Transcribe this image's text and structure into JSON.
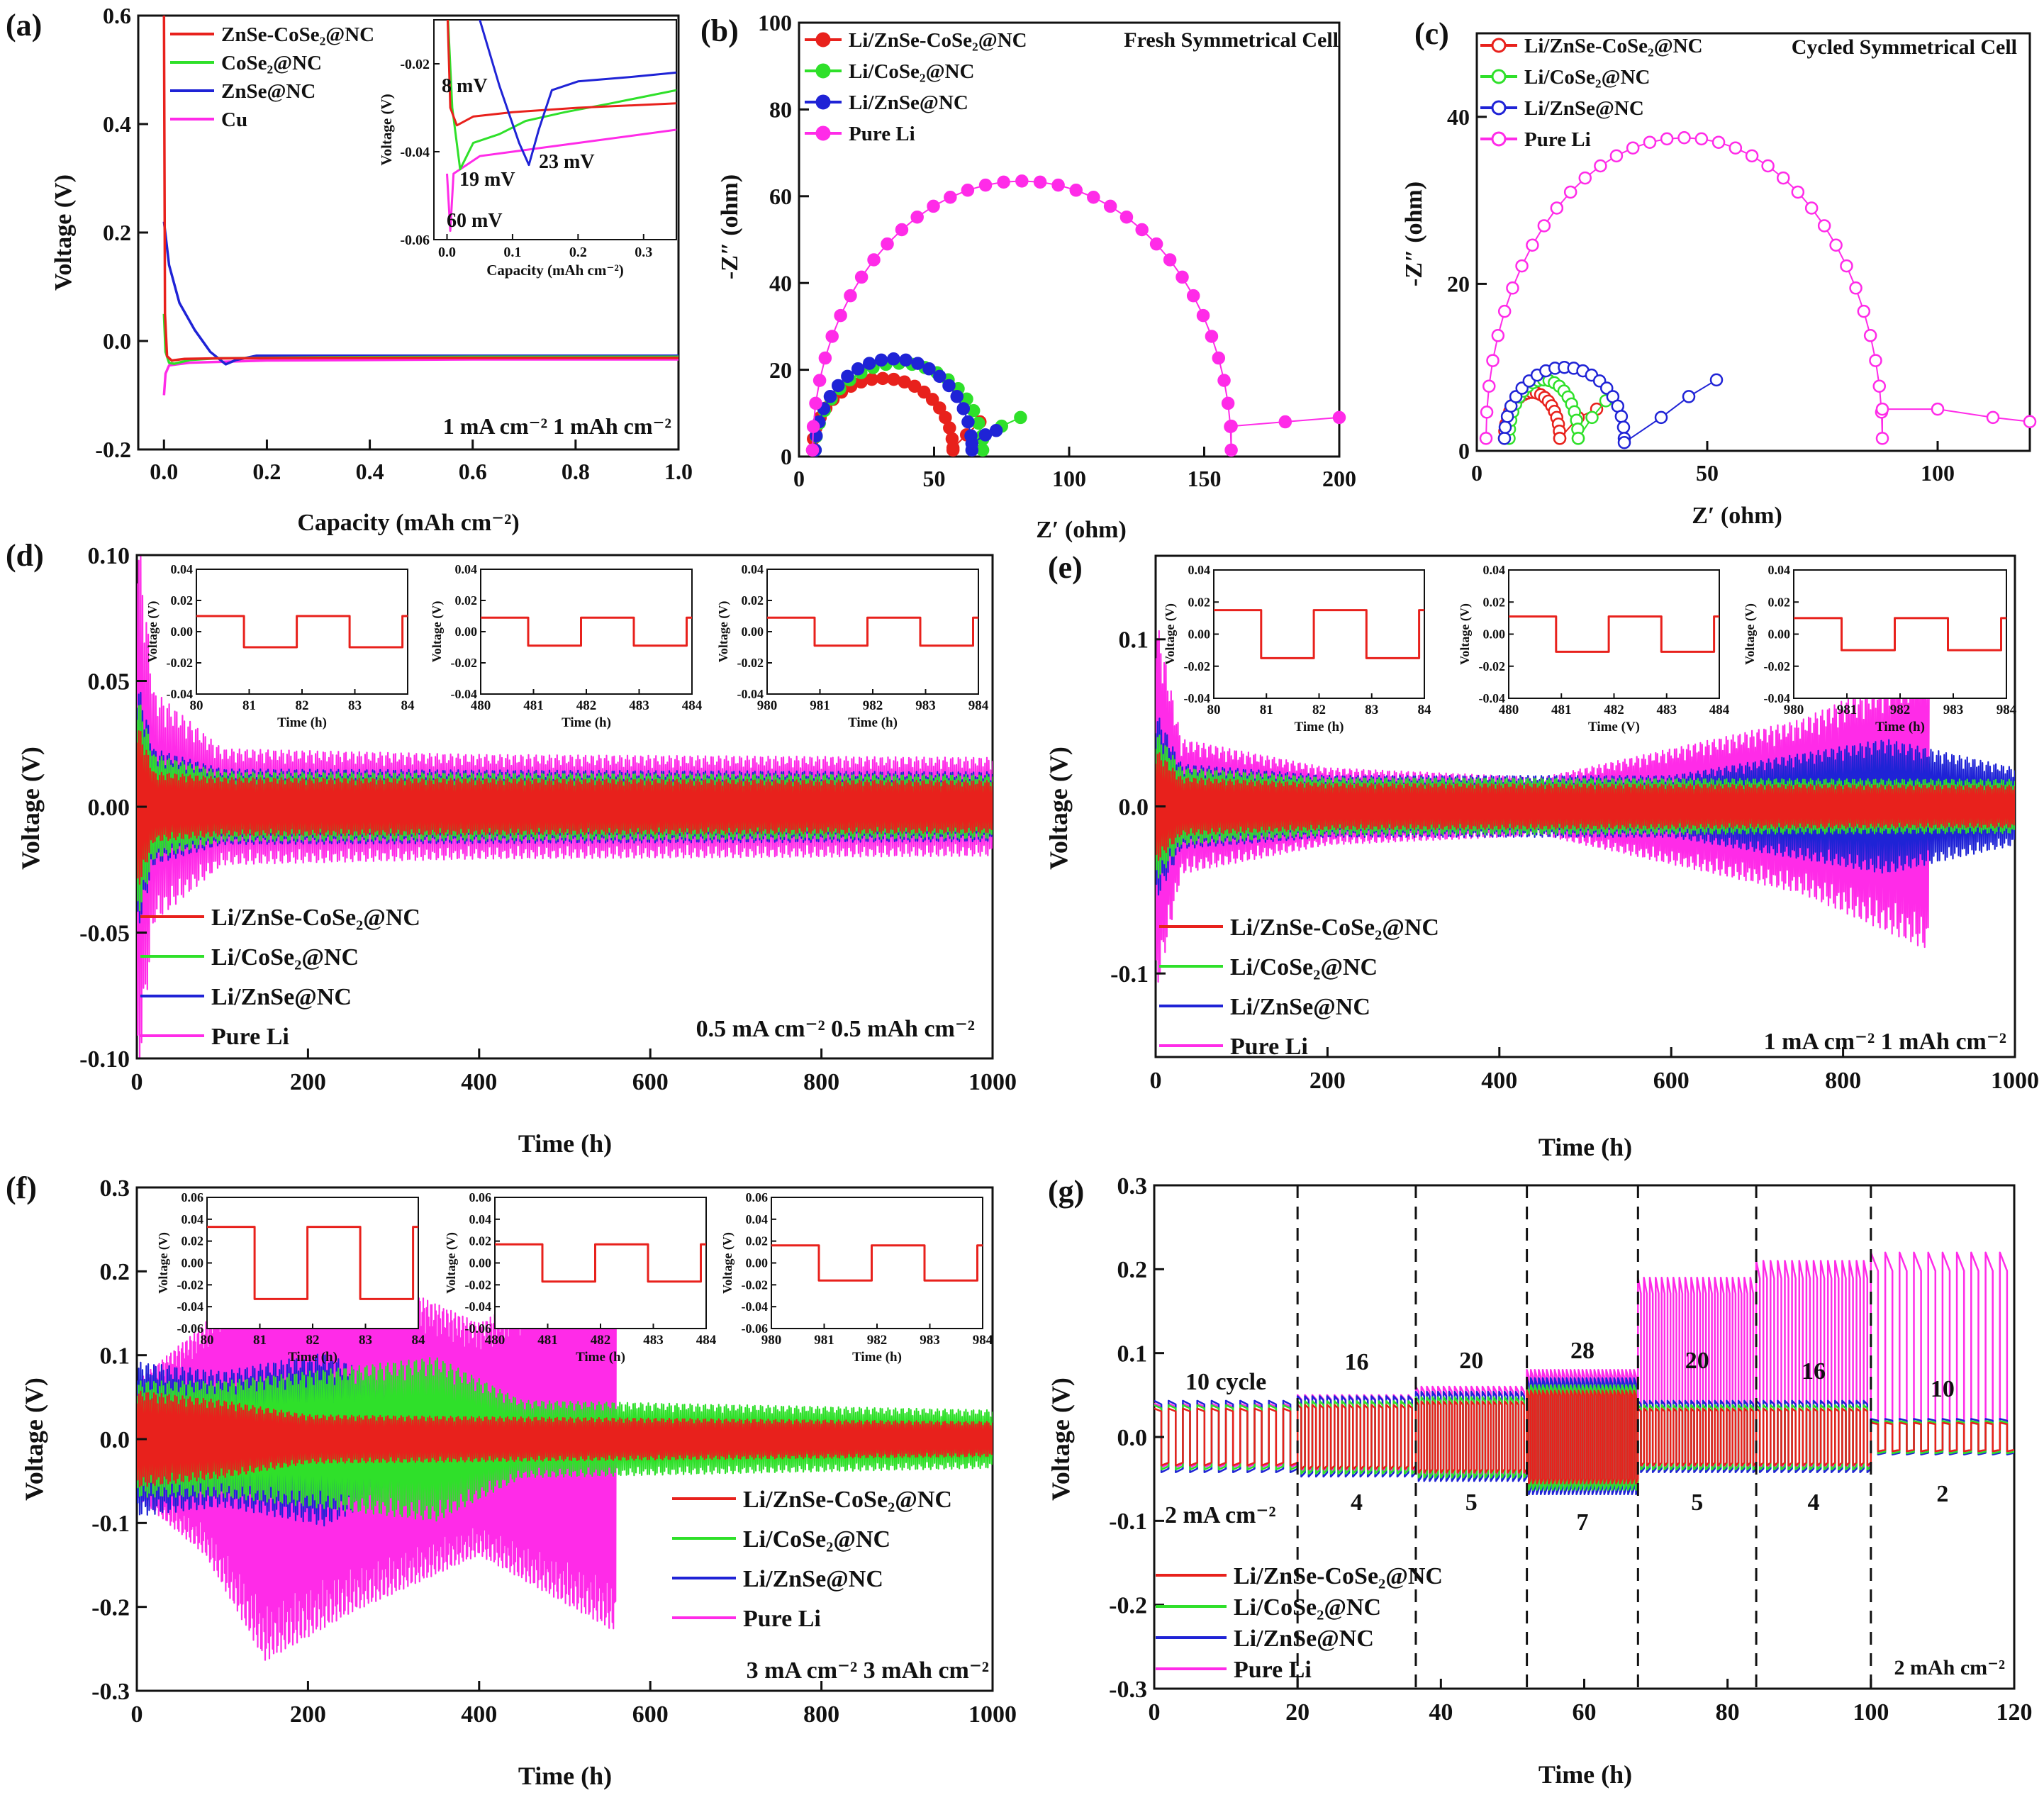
{
  "colors": {
    "red": "#e8211c",
    "green": "#2fe02a",
    "blue": "#1f23d6",
    "magenta": "#ff2be8",
    "black": "#111111"
  },
  "chart_data": [
    {
      "panel": "(a)",
      "type": "line",
      "xlabel": "Capacity (mAh cm⁻²)",
      "ylabel": "Voltage (V)",
      "xlim": [
        -0.05,
        1.0
      ],
      "ylim": [
        -0.2,
        0.6
      ],
      "xticks": [
        "0.0",
        "0.2",
        "0.4",
        "0.6",
        "0.8",
        "1.0"
      ],
      "yticks": [
        "-0.2",
        "0.0",
        "0.2",
        "0.4",
        "0.6"
      ],
      "condition": "1 mA cm⁻² 1 mAh cm⁻²",
      "legend_position": "top-left",
      "series": [
        {
          "name": "ZnSe-CoSe₂@NC",
          "color": "red",
          "x": [
            0,
            0.002,
            0.006,
            0.015,
            0.04,
            0.1,
            0.3,
            0.6,
            1.0
          ],
          "y": [
            0.6,
            0.05,
            -0.028,
            -0.036,
            -0.033,
            -0.032,
            -0.031,
            -0.031,
            -0.031
          ]
        },
        {
          "name": "CoSe₂@NC",
          "color": "green",
          "x": [
            0,
            0.003,
            0.01,
            0.02,
            0.05,
            0.1,
            0.3,
            0.6,
            1.0
          ],
          "y": [
            0.05,
            -0.02,
            -0.04,
            -0.042,
            -0.035,
            -0.032,
            -0.03,
            -0.029,
            -0.029
          ]
        },
        {
          "name": "ZnSe@NC",
          "color": "blue",
          "x": [
            0,
            0.01,
            0.03,
            0.06,
            0.09,
            0.12,
            0.14,
            0.18,
            0.3,
            0.6,
            1.0
          ],
          "y": [
            0.22,
            0.14,
            0.07,
            0.02,
            -0.02,
            -0.043,
            -0.035,
            -0.027,
            -0.027,
            -0.027,
            -0.027
          ]
        },
        {
          "name": "Cu",
          "color": "magenta",
          "x": [
            0,
            0.003,
            0.01,
            0.05,
            0.2,
            0.6,
            1.0
          ],
          "y": [
            -0.1,
            -0.06,
            -0.045,
            -0.04,
            -0.036,
            -0.034,
            -0.034
          ]
        }
      ],
      "inset": {
        "xlabel": "Capacity (mAh cm⁻²)",
        "ylabel": "Voltage (V)",
        "xlim": [
          -0.02,
          0.35
        ],
        "ylim": [
          -0.06,
          -0.01
        ],
        "xticks": [
          "0.0",
          "0.1",
          "0.2",
          "0.3"
        ],
        "yticks": [
          "-0.02",
          "-0.04",
          "-0.06"
        ],
        "annotations": [
          {
            "text": "8 mV",
            "color": "red"
          },
          {
            "text": "19 mV",
            "color": "green"
          },
          {
            "text": "23 mV",
            "color": "blue"
          },
          {
            "text": "60 mV",
            "color": "magenta"
          }
        ]
      }
    },
    {
      "panel": "(b)",
      "type": "scatter",
      "xlabel": "Z′ (ohm)",
      "ylabel": "-Z″ (ohm)",
      "title": "Fresh Symmetrical Cell",
      "xlim": [
        0,
        200
      ],
      "ylim": [
        0,
        100
      ],
      "xticks": [
        "0",
        "50",
        "100",
        "150",
        "200"
      ],
      "yticks": [
        "0",
        "20",
        "40",
        "60",
        "80",
        "100"
      ],
      "legend_position": "top-left",
      "series": [
        {
          "name": "Li/ZnSe-CoSe₂@NC",
          "color": "red",
          "arc": [
            5,
            57,
            16.5
          ],
          "tail": [
            [
              57,
              2
            ],
            [
              62,
              5
            ],
            [
              67,
              8
            ]
          ]
        },
        {
          "name": "Li/CoSe₂@NC",
          "color": "green",
          "arc": [
            6,
            68,
            20
          ],
          "tail": [
            [
              68,
              4
            ],
            [
              75,
              7
            ],
            [
              82,
              9
            ]
          ]
        },
        {
          "name": "Li/ZnSe@NC",
          "color": "blue",
          "arc": [
            6,
            64,
            21
          ],
          "tail": [
            [
              64,
              3
            ],
            [
              69,
              5
            ],
            [
              73,
              6
            ]
          ]
        },
        {
          "name": "Pure Li",
          "color": "magenta",
          "arc": [
            5,
            160,
            62
          ],
          "tail": [
            [
              160,
              7
            ],
            [
              180,
              8
            ],
            [
              200,
              9
            ]
          ]
        }
      ]
    },
    {
      "panel": "(c)",
      "type": "scatter",
      "xlabel": "Z′ (ohm)",
      "ylabel": "-Z″ (ohm)",
      "title": "Cycled Symmetrical Cell",
      "xlim": [
        0,
        120
      ],
      "ylim": [
        0,
        50
      ],
      "xticks": [
        "0",
        "50",
        "100"
      ],
      "yticks": [
        "0",
        "20",
        "40"
      ],
      "legend_position": "top-left",
      "series": [
        {
          "name": "Li/ZnSe-CoSe₂@NC",
          "color": "red",
          "arc": [
            6,
            18,
            5.5
          ],
          "tail": [
            [
              18,
              1.5
            ],
            [
              22,
              4
            ],
            [
              26,
              5
            ]
          ]
        },
        {
          "name": "Li/CoSe₂@NC",
          "color": "green",
          "arc": [
            7,
            22,
            7
          ],
          "tail": [
            [
              22,
              1.5
            ],
            [
              25,
              4
            ],
            [
              28,
              6
            ]
          ]
        },
        {
          "name": "Li/ZnSe@NC",
          "color": "blue",
          "arc": [
            6,
            32,
            8.5
          ],
          "tail": [
            [
              32,
              1
            ],
            [
              40,
              4
            ],
            [
              46,
              6.5
            ],
            [
              52,
              8.5
            ]
          ]
        },
        {
          "name": "Pure Li",
          "color": "magenta",
          "arc": [
            2,
            88,
            36
          ],
          "tail": [
            [
              88,
              5
            ],
            [
              100,
              5
            ],
            [
              112,
              4
            ],
            [
              120,
              3.5
            ]
          ]
        }
      ]
    },
    {
      "panel": "(d)",
      "type": "line",
      "xlabel": "Time (h)",
      "ylabel": "Voltage (V)",
      "xlim": [
        0,
        1000
      ],
      "ylim": [
        -0.1,
        0.1
      ],
      "xticks": [
        "0",
        "200",
        "400",
        "600",
        "800",
        "1000"
      ],
      "yticks": [
        "-0.10",
        "-0.05",
        "0.00",
        "0.05",
        "0.10"
      ],
      "condition": "0.5 mA cm⁻² 0.5 mAh cm⁻²",
      "legend_position": "bottom-left",
      "series": [
        {
          "name": "Li/ZnSe-CoSe₂@NC",
          "color": "red",
          "t": [
            0,
            20,
            100,
            1000
          ],
          "amp": [
            0.03,
            0.012,
            0.01,
            0.009
          ]
        },
        {
          "name": "Li/CoSe₂@NC",
          "color": "green",
          "t": [
            0,
            20,
            100,
            1000
          ],
          "amp": [
            0.04,
            0.018,
            0.012,
            0.011
          ]
        },
        {
          "name": "Li/ZnSe@NC",
          "color": "blue",
          "t": [
            0,
            20,
            100,
            1000
          ],
          "amp": [
            0.045,
            0.02,
            0.013,
            0.012
          ]
        },
        {
          "name": "Pure Li",
          "color": "magenta",
          "t": [
            0,
            20,
            100,
            400,
            1000
          ],
          "amp": [
            0.1,
            0.04,
            0.02,
            0.018,
            0.017
          ]
        }
      ],
      "insets": [
        {
          "xticks": [
            "80",
            "81",
            "82",
            "83",
            "84"
          ],
          "xlabel": "Time (h)",
          "ylabel": "Voltage (V)",
          "yticks": [
            "0.04",
            "0.02",
            "0.00",
            "-0.02",
            "-0.04"
          ],
          "amp": 0.01
        },
        {
          "xticks": [
            "480",
            "481",
            "482",
            "483",
            "484"
          ],
          "xlabel": "Time (h)",
          "ylabel": "Voltage (V)",
          "yticks": [
            "0.04",
            "0.02",
            "0.00",
            "-0.02",
            "-0.04"
          ],
          "amp": 0.009
        },
        {
          "xticks": [
            "980",
            "981",
            "982",
            "983",
            "984"
          ],
          "xlabel": "Time (h)",
          "ylabel": "Voltage (V)",
          "yticks": [
            "0.04",
            "0.02",
            "0.00",
            "-0.02",
            "-0.04"
          ],
          "amp": 0.009
        }
      ]
    },
    {
      "panel": "(e)",
      "type": "line",
      "xlabel": "Time (h)",
      "ylabel": "Voltage (V)",
      "xlim": [
        0,
        1000
      ],
      "ylim": [
        -0.15,
        0.15
      ],
      "xticks": [
        "0",
        "200",
        "400",
        "600",
        "800",
        "1000"
      ],
      "yticks": [
        "-0.1",
        "0.0",
        "0.1"
      ],
      "condition": "1 mA cm⁻²  1 mAh cm⁻²",
      "legend_position": "bottom-left",
      "series": [
        {
          "name": "Li/ZnSe-CoSe₂@NC",
          "color": "red",
          "t": [
            0,
            30,
            200,
            1000
          ],
          "amp": [
            0.03,
            0.015,
            0.012,
            0.011
          ]
        },
        {
          "name": "Li/CoSe₂@NC",
          "color": "green",
          "t": [
            0,
            30,
            200,
            1000
          ],
          "amp": [
            0.04,
            0.02,
            0.015,
            0.014
          ]
        },
        {
          "name": "Li/ZnSe@NC",
          "color": "blue",
          "t": [
            0,
            30,
            200,
            600,
            850,
            1000
          ],
          "amp": [
            0.05,
            0.022,
            0.016,
            0.016,
            0.035,
            0.02
          ]
        },
        {
          "name": "Pure Li",
          "color": "magenta",
          "t": [
            0,
            30,
            200,
            450,
            600,
            750,
            900
          ],
          "amp": [
            0.1,
            0.035,
            0.02,
            0.015,
            0.03,
            0.045,
            0.075
          ]
        }
      ],
      "insets": [
        {
          "xticks": [
            "80",
            "81",
            "82",
            "83",
            "84"
          ],
          "xlabel": "Time (h)",
          "ylabel": "Voltage (V)",
          "yticks": [
            "0.04",
            "0.02",
            "0.00",
            "-0.02",
            "-0.04"
          ],
          "amp": 0.015
        },
        {
          "xticks": [
            "480",
            "481",
            "482",
            "483",
            "484"
          ],
          "xlabel": "Time (V)",
          "ylabel": "Voltage (V)",
          "yticks": [
            "0.04",
            "0.02",
            "0.00",
            "-0.02",
            "-0.04"
          ],
          "amp": 0.011
        },
        {
          "xticks": [
            "980",
            "981",
            "982",
            "983",
            "984"
          ],
          "xlabel": "Time (h)",
          "ylabel": "Voltage (V)",
          "yticks": [
            "0.04",
            "0.02",
            "0.00",
            "-0.02",
            "-0.04"
          ],
          "amp": 0.01
        }
      ]
    },
    {
      "panel": "(f)",
      "type": "line",
      "xlabel": "Time (h)",
      "ylabel": "Voltage (V)",
      "xlim": [
        0,
        1000
      ],
      "ylim": [
        -0.3,
        0.3
      ],
      "xticks": [
        "0",
        "200",
        "400",
        "600",
        "800",
        "1000"
      ],
      "yticks": [
        "-0.3",
        "-0.2",
        "-0.1",
        "0.0",
        "0.1",
        "0.2",
        "0.3"
      ],
      "condition": "3 mA cm⁻²  3 mAh cm⁻²",
      "legend_position": "bottom-right",
      "series": [
        {
          "name": "Li/ZnSe-CoSe₂@NC",
          "color": "red",
          "t": [
            0,
            100,
            200,
            1000
          ],
          "amp": [
            0.05,
            0.04,
            0.025,
            0.018
          ]
        },
        {
          "name": "Li/CoSe₂@NC",
          "color": "green",
          "t": [
            0,
            100,
            350,
            450,
            1000
          ],
          "amp": [
            0.06,
            0.06,
            0.085,
            0.04,
            0.03
          ]
        },
        {
          "name": "Li/ZnSe@NC",
          "color": "blue",
          "t": [
            0,
            100,
            220,
            380,
            1000
          ],
          "amp": [
            0.08,
            0.07,
            0.09,
            0.02,
            0.015
          ]
        },
        {
          "name": "Pure Li",
          "color": "magenta",
          "t": [
            0,
            80,
            150,
            250,
            400,
            560
          ],
          "amp": [
            0.06,
            0.12,
            0.23,
            0.18,
            0.12,
            0.2
          ]
        }
      ],
      "insets": [
        {
          "xticks": [
            "80",
            "81",
            "82",
            "83",
            "84"
          ],
          "xlabel": "Time (h)",
          "ylabel": "Voltage (V)",
          "yticks": [
            "0.06",
            "0.04",
            "0.02",
            "0.00",
            "-0.02",
            "-0.04",
            "-0.06"
          ],
          "amp": 0.033
        },
        {
          "xticks": [
            "480",
            "481",
            "482",
            "483",
            "484"
          ],
          "xlabel": "Time (h)",
          "ylabel": "Voltage (V)",
          "yticks": [
            "0.06",
            "0.04",
            "0.02",
            "0.00",
            "-0.02",
            "-0.04",
            "-0.06"
          ],
          "amp": 0.017
        },
        {
          "xticks": [
            "980",
            "981",
            "982",
            "983",
            "984"
          ],
          "xlabel": "Time (h)",
          "ylabel": "Voltage (V)",
          "yticks": [
            "0.06",
            "0.04",
            "0.02",
            "0.00",
            "-0.02",
            "-0.04",
            "-0.06"
          ],
          "amp": 0.016
        }
      ]
    },
    {
      "panel": "(g)",
      "type": "line",
      "xlabel": "Time (h)",
      "ylabel": "Voltage (V)",
      "xlim": [
        0,
        120
      ],
      "ylim": [
        -0.3,
        0.3
      ],
      "xticks": [
        "0",
        "20",
        "40",
        "60",
        "80",
        "100",
        "120"
      ],
      "yticks": [
        "-0.3",
        "-0.2",
        "-0.1",
        "0.0",
        "0.1",
        "0.2",
        "0.3"
      ],
      "condition": "2 mAh cm⁻²",
      "legend_position": "bottom-left",
      "segments": [
        {
          "t0": 0,
          "t1": 20,
          "current": "2 mA cm⁻²",
          "cycles": "10 cycle",
          "amp": 0.04,
          "li": 0.04
        },
        {
          "t0": 20,
          "t1": 36.5,
          "current": "4",
          "cycles": "16",
          "amp": 0.045,
          "li": 0.05
        },
        {
          "t0": 36.5,
          "t1": 52,
          "current": "5",
          "cycles": "20",
          "amp": 0.05,
          "li": 0.06
        },
        {
          "t0": 52,
          "t1": 67.5,
          "current": "7",
          "cycles": "28",
          "amp": 0.065,
          "li": 0.08
        },
        {
          "t0": 67.5,
          "t1": 84,
          "current": "5",
          "cycles": "20",
          "amp": 0.04,
          "li": 0.19
        },
        {
          "t0": 84,
          "t1": 100,
          "current": "4",
          "cycles": "16",
          "amp": 0.04,
          "li": 0.21
        },
        {
          "t0": 100,
          "t1": 120,
          "current": "2",
          "cycles": "10",
          "amp": 0.02,
          "li": 0.22
        }
      ],
      "series": [
        {
          "name": "Li/ZnSe-CoSe₂@NC",
          "color": "red"
        },
        {
          "name": "Li/CoSe₂@NC",
          "color": "green"
        },
        {
          "name": "Li/ZnSe@NC",
          "color": "blue"
        },
        {
          "name": "Pure Li",
          "color": "magenta"
        }
      ]
    }
  ]
}
